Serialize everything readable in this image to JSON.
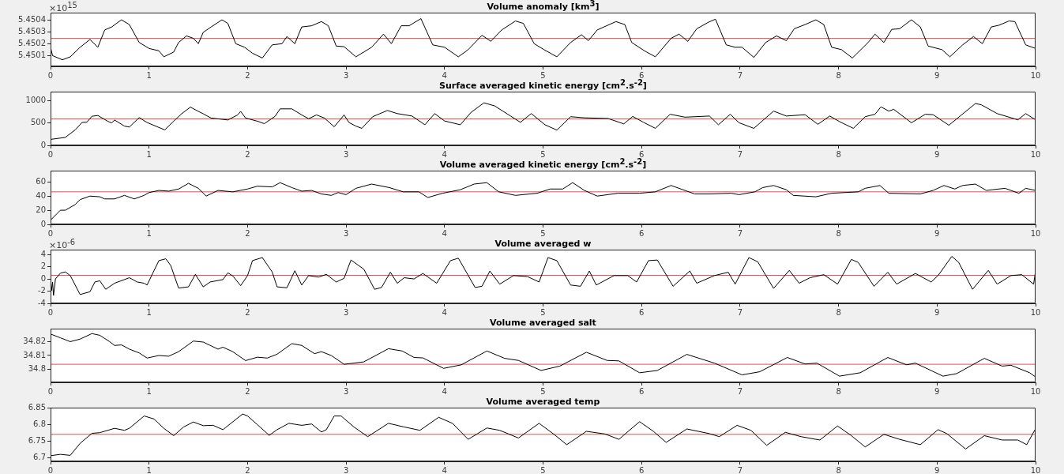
{
  "chart_data": [
    {
      "type": "line",
      "title": "Volume anomaly [km$^{3}$]",
      "annotations": [
        "×10$^{15}$"
      ],
      "xlim": [
        0,
        10
      ],
      "xticks": [
        0,
        1,
        2,
        3,
        4,
        5,
        6,
        7,
        8,
        9,
        10
      ],
      "ylim": [
        5.45001,
        5.45046
      ],
      "yticks": [
        5.4501,
        5.4502,
        5.4503,
        5.4504
      ],
      "x": [
        0,
        0.02,
        0.12,
        0.2,
        0.3,
        0.4,
        0.48,
        0.55,
        0.62,
        0.72,
        0.8,
        0.9,
        1.0,
        1.1,
        1.15,
        1.25,
        1.3,
        1.38,
        1.45,
        1.5,
        1.55,
        1.63,
        1.74,
        1.8,
        1.88,
        1.97,
        2.05,
        2.15,
        2.25,
        2.35,
        2.4,
        2.48,
        2.55,
        2.65,
        2.75,
        2.82,
        2.9,
        2.98,
        3.1,
        3.26,
        3.38,
        3.46,
        3.56,
        3.64,
        3.76,
        3.88,
        4.0,
        4.14,
        4.24,
        4.38,
        4.47,
        4.58,
        4.72,
        4.8,
        4.91,
        5.01,
        5.14,
        5.28,
        5.39,
        5.46,
        5.55,
        5.74,
        5.83,
        5.9,
        6.03,
        6.14,
        6.3,
        6.38,
        6.47,
        6.56,
        6.68,
        6.75,
        6.86,
        6.95,
        7.02,
        7.14,
        7.26,
        7.37,
        7.47,
        7.55,
        7.66,
        7.77,
        7.85,
        7.93,
        8.03,
        8.14,
        8.3,
        8.37,
        8.46,
        8.54,
        8.62,
        8.74,
        8.83,
        8.91,
        9.05,
        9.13,
        9.26,
        9.37,
        9.46,
        9.55,
        9.63,
        9.73,
        9.79,
        9.9,
        10
      ],
      "series": [
        {
          "color": "#000000",
          "values": [
            5.45017,
            5.4501,
            5.450065,
            5.45009,
            5.45017,
            5.450235,
            5.45017,
            5.450315,
            5.45034,
            5.4504,
            5.45036,
            5.45021,
            5.45016,
            5.45014,
            5.45009,
            5.45013,
            5.45021,
            5.450265,
            5.450245,
            5.4502,
            5.450295,
            5.45034,
            5.4504,
            5.45037,
            5.4502,
            5.45017,
            5.45012,
            5.45008,
            5.45019,
            5.4502,
            5.45026,
            5.4502,
            5.45034,
            5.45035,
            5.450385,
            5.45035,
            5.45018,
            5.450175,
            5.45009,
            5.45017,
            5.45028,
            5.4502,
            5.45035,
            5.45035,
            5.45041,
            5.45019,
            5.45017,
            5.45009,
            5.45015,
            5.45027,
            5.45022,
            5.450315,
            5.45039,
            5.45037,
            5.4502,
            5.45015,
            5.45009,
            5.45021,
            5.450275,
            5.450225,
            5.450315,
            5.450385,
            5.45036,
            5.45021,
            5.45014,
            5.45009,
            5.450245,
            5.45028,
            5.45022,
            5.450325,
            5.45038,
            5.450405,
            5.45019,
            5.45017,
            5.45017,
            5.450085,
            5.45021,
            5.450265,
            5.450225,
            5.450325,
            5.45036,
            5.4504,
            5.45036,
            5.45017,
            5.45015,
            5.45008,
            5.45021,
            5.45028,
            5.45021,
            5.45032,
            5.450325,
            5.4504,
            5.45034,
            5.45018,
            5.45015,
            5.45009,
            5.45019,
            5.45026,
            5.4502,
            5.45034,
            5.450355,
            5.45039,
            5.450385,
            5.45019,
            5.45016
          ]
        }
      ],
      "ref_lines": [
        {
          "axis": "y",
          "value": 5.450244,
          "color": "#d9534f"
        }
      ]
    },
    {
      "type": "line",
      "title": "Surface averaged kinetic energy [cm$^{2}$.s$^{-2}$]",
      "xlim": [
        0,
        10
      ],
      "xticks": [
        0,
        1,
        2,
        3,
        4,
        5,
        6,
        7,
        8,
        9,
        10
      ],
      "ylim": [
        0,
        1200
      ],
      "yticks": [
        0,
        500,
        1000
      ],
      "x": [
        0,
        0.15,
        0.25,
        0.32,
        0.37,
        0.42,
        0.48,
        0.58,
        0.62,
        0.65,
        0.75,
        0.8,
        0.9,
        0.98,
        1.1,
        1.16,
        1.25,
        1.33,
        1.42,
        1.5,
        1.55,
        1.63,
        1.8,
        1.9,
        1.93,
        1.98,
        2.1,
        2.17,
        2.28,
        2.33,
        2.45,
        2.55,
        2.62,
        2.7,
        2.78,
        2.88,
        2.98,
        3.03,
        3.1,
        3.16,
        3.27,
        3.42,
        3.52,
        3.67,
        3.8,
        3.9,
        4.0,
        4.16,
        4.27,
        4.4,
        4.51,
        4.67,
        4.77,
        4.88,
        5.02,
        5.14,
        5.28,
        5.42,
        5.66,
        5.82,
        5.91,
        6.02,
        6.14,
        6.29,
        6.44,
        6.69,
        6.78,
        6.9,
        6.99,
        7.14,
        7.34,
        7.47,
        7.66,
        7.79,
        7.91,
        8.01,
        8.15,
        8.27,
        8.37,
        8.43,
        8.51,
        8.56,
        8.74,
        8.88,
        8.96,
        9.12,
        9.39,
        9.45,
        9.61,
        9.82,
        9.9,
        10
      ],
      "series": [
        {
          "color": "#000000",
          "values": [
            133,
            178,
            345,
            510,
            520,
            650,
            667,
            540,
            500,
            567,
            430,
            410,
            620,
            510,
            400,
            345,
            540,
            705,
            855,
            760,
            705,
            610,
            567,
            680,
            760,
            610,
            540,
            485,
            650,
            815,
            815,
            680,
            595,
            680,
            610,
            415,
            680,
            510,
            430,
            380,
            640,
            780,
            710,
            655,
            460,
            710,
            545,
            460,
            740,
            950,
            880,
            655,
            515,
            710,
            460,
            340,
            640,
            615,
            600,
            480,
            645,
            515,
            380,
            695,
            630,
            655,
            460,
            695,
            505,
            380,
            765,
            655,
            685,
            470,
            655,
            530,
            380,
            640,
            695,
            860,
            765,
            805,
            505,
            695,
            685,
            450,
            935,
            905,
            710,
            570,
            710,
            570
          ]
        }
      ],
      "ref_lines": [
        {
          "axis": "y",
          "value": 590,
          "color": "#d9534f"
        }
      ]
    },
    {
      "type": "line",
      "title": "Volume averaged kinetic energy [cm$^{2}$.s$^{-2}$]",
      "xlim": [
        0,
        10
      ],
      "xticks": [
        0,
        1,
        2,
        3,
        4,
        5,
        6,
        7,
        8,
        9,
        10
      ],
      "ylim": [
        0,
        76
      ],
      "yticks": [
        0,
        20,
        40,
        60
      ],
      "x": [
        0,
        0.1,
        0.15,
        0.25,
        0.3,
        0.4,
        0.5,
        0.55,
        0.65,
        0.75,
        0.85,
        0.95,
        1.0,
        1.1,
        1.2,
        1.3,
        1.4,
        1.5,
        1.58,
        1.7,
        1.85,
        2.0,
        2.1,
        2.25,
        2.33,
        2.45,
        2.55,
        2.65,
        2.75,
        2.85,
        2.92,
        3.0,
        3.1,
        3.26,
        3.44,
        3.58,
        3.74,
        3.83,
        3.98,
        4.16,
        4.3,
        4.43,
        4.55,
        4.72,
        4.94,
        5.07,
        5.2,
        5.3,
        5.42,
        5.55,
        5.76,
        5.98,
        6.14,
        6.3,
        6.54,
        6.68,
        6.91,
        6.99,
        7.15,
        7.23,
        7.34,
        7.47,
        7.54,
        7.77,
        7.93,
        8.2,
        8.27,
        8.42,
        8.51,
        8.83,
        8.96,
        9.07,
        9.18,
        9.26,
        9.39,
        9.5,
        9.69,
        9.83,
        9.9,
        10
      ],
      "series": [
        {
          "color": "#000000",
          "values": [
            6,
            20,
            20,
            28,
            35,
            40,
            39,
            36,
            36,
            41,
            36,
            41,
            45,
            48,
            47,
            50,
            58,
            51,
            40,
            48,
            46,
            50,
            54,
            53,
            59,
            52,
            47,
            48,
            43,
            41,
            45,
            42,
            51,
            57,
            52,
            46,
            46,
            38,
            44,
            49,
            57,
            59,
            46,
            41,
            44,
            50,
            50,
            59,
            48,
            40,
            44,
            44,
            46,
            55,
            43,
            43,
            44,
            42,
            46,
            52,
            55,
            49,
            41,
            39,
            44,
            46,
            51,
            55,
            44,
            43,
            48,
            55,
            50,
            55,
            57,
            48,
            51,
            44,
            51,
            48
          ]
        }
      ],
      "ref_lines": [
        {
          "axis": "y",
          "value": 46,
          "color": "#d9534f"
        }
      ]
    },
    {
      "type": "line",
      "title": "Volume averaged w",
      "annotations": [
        "×10$^{-6}$"
      ],
      "xlim": [
        0,
        10
      ],
      "xticks": [
        0,
        1,
        2,
        3,
        4,
        5,
        6,
        7,
        8,
        9,
        10
      ],
      "ylim": [
        -4,
        4.8
      ],
      "yticks": [
        -4,
        -2,
        0,
        2,
        4
      ],
      "x": [
        0,
        0.01,
        0.02,
        0.03,
        0.05,
        0.1,
        0.15,
        0.2,
        0.3,
        0.4,
        0.45,
        0.5,
        0.56,
        0.65,
        0.75,
        0.8,
        0.88,
        0.95,
        0.98,
        1.05,
        1.1,
        1.17,
        1.22,
        1.3,
        1.4,
        1.47,
        1.55,
        1.62,
        1.75,
        1.8,
        1.85,
        1.93,
        2.0,
        2.05,
        2.15,
        2.25,
        2.3,
        2.4,
        2.48,
        2.55,
        2.62,
        2.72,
        2.8,
        2.9,
        2.98,
        3.05,
        3.18,
        3.29,
        3.36,
        3.45,
        3.52,
        3.59,
        3.69,
        3.78,
        3.92,
        4.06,
        4.14,
        4.31,
        4.38,
        4.46,
        4.56,
        4.7,
        4.84,
        4.96,
        5.05,
        5.14,
        5.28,
        5.38,
        5.47,
        5.54,
        5.72,
        5.86,
        5.95,
        6.07,
        6.16,
        6.32,
        6.49,
        6.56,
        6.74,
        6.88,
        6.95,
        7.09,
        7.18,
        7.34,
        7.5,
        7.6,
        7.71,
        7.85,
        7.99,
        8.13,
        8.2,
        8.36,
        8.5,
        8.59,
        8.78,
        8.94,
        9.01,
        9.15,
        9.22,
        9.36,
        9.52,
        9.61,
        9.75,
        9.86,
        9.98,
        10
      ],
      "series": [
        {
          "color": "#000000",
          "values": [
            0,
            -1.9,
            -0.5,
            -2.7,
            0,
            0.95,
            1.15,
            0.55,
            -2.55,
            -2.1,
            -0.5,
            -0.3,
            -1.7,
            -0.7,
            -0.1,
            0.2,
            -0.5,
            -0.7,
            -1.0,
            1.35,
            3.0,
            3.3,
            2.2,
            -1.5,
            -1.3,
            0.75,
            -1.3,
            -0.5,
            -0.1,
            1.0,
            0.5,
            -1.1,
            0.55,
            3.0,
            3.5,
            1.15,
            -1.3,
            -1.45,
            1.35,
            -1.0,
            0.55,
            0.3,
            0.75,
            -0.5,
            0.1,
            3.1,
            1.6,
            -1.7,
            -1.4,
            1.1,
            -0.7,
            0.2,
            0,
            0.9,
            -0.7,
            3.0,
            3.4,
            -1.4,
            -1.2,
            1.3,
            -0.85,
            0.55,
            0.4,
            -0.5,
            3.5,
            3.0,
            -1.0,
            -1.2,
            1.3,
            -1.0,
            0.55,
            0.55,
            -0.5,
            3.0,
            3.1,
            -1.2,
            1.3,
            -0.7,
            0.55,
            1.1,
            -0.85,
            3.5,
            2.8,
            -1.55,
            1.4,
            -0.7,
            0.2,
            0.7,
            -0.85,
            3.2,
            2.7,
            -1.2,
            1.1,
            -0.85,
            0.9,
            -0.5,
            0.55,
            3.7,
            2.7,
            -1.7,
            1.4,
            -0.85,
            0.55,
            0.7,
            -0.85,
            1.3
          ]
        }
      ],
      "ref_lines": [
        {
          "axis": "y",
          "value": 0.6,
          "color": "#d9534f"
        }
      ]
    },
    {
      "type": "line",
      "title": "Volume averaged salt",
      "xlim": [
        0,
        10
      ],
      "xticks": [
        0,
        1,
        2,
        3,
        4,
        5,
        6,
        7,
        8,
        9,
        10
      ],
      "ylim": [
        34.791,
        34.829
      ],
      "yticks": [
        34.8,
        34.81,
        34.82
      ],
      "x": [
        0,
        0.1,
        0.2,
        0.3,
        0.42,
        0.5,
        0.6,
        0.65,
        0.72,
        0.8,
        0.9,
        0.98,
        1.1,
        1.2,
        1.3,
        1.45,
        1.55,
        1.7,
        1.75,
        1.85,
        1.98,
        2.1,
        2.2,
        2.3,
        2.45,
        2.55,
        2.68,
        2.75,
        2.85,
        2.98,
        3.08,
        3.18,
        3.43,
        3.57,
        3.69,
        3.78,
        3.99,
        4.17,
        4.43,
        4.61,
        4.75,
        4.98,
        5.17,
        5.44,
        5.65,
        5.77,
        5.98,
        6.16,
        6.46,
        6.74,
        7.02,
        7.2,
        7.48,
        7.66,
        7.78,
        8.01,
        8.22,
        8.5,
        8.69,
        8.78,
        9.06,
        9.2,
        9.48,
        9.66,
        9.75,
        9.94,
        10
      ],
      "series": [
        {
          "color": "#000000",
          "values": [
            34.8252,
            34.8225,
            34.8198,
            34.8216,
            34.8255,
            34.8243,
            34.8198,
            34.8171,
            34.8175,
            34.8145,
            34.8118,
            34.8082,
            34.81,
            34.8095,
            34.8127,
            34.8202,
            34.8195,
            34.8145,
            34.8159,
            34.8127,
            34.8064,
            34.8088,
            34.8082,
            34.8109,
            34.8184,
            34.8171,
            34.8113,
            34.8127,
            34.81,
            34.8038,
            34.8046,
            34.8055,
            34.8148,
            34.8132,
            34.8086,
            34.8083,
            34.8009,
            34.8034,
            34.8132,
            34.808,
            34.8065,
            34.7994,
            34.8025,
            34.8123,
            34.8065,
            34.8062,
            34.7978,
            34.7994,
            34.8108,
            34.8046,
            34.7963,
            34.7985,
            34.8086,
            34.804,
            34.8046,
            34.7954,
            34.7978,
            34.8086,
            34.8034,
            34.8046,
            34.7954,
            34.7972,
            34.808,
            34.8025,
            34.8031,
            34.7978,
            34.7948
          ]
        }
      ],
      "ref_lines": [
        {
          "axis": "y",
          "value": 34.8038,
          "color": "#d9534f"
        }
      ]
    },
    {
      "type": "line",
      "title": "Volume averaged temp",
      "xlim": [
        0,
        10
      ],
      "xticks": [
        0,
        1,
        2,
        3,
        4,
        5,
        6,
        7,
        8,
        9,
        10
      ],
      "ylim": [
        6.689,
        6.85
      ],
      "yticks": [
        6.7,
        6.75,
        6.8,
        6.85
      ],
      "x": [
        0,
        0.1,
        0.2,
        0.3,
        0.42,
        0.5,
        0.65,
        0.75,
        0.8,
        0.95,
        1.05,
        1.15,
        1.25,
        1.35,
        1.45,
        1.55,
        1.65,
        1.75,
        1.95,
        2.0,
        2.1,
        2.22,
        2.3,
        2.42,
        2.55,
        2.65,
        2.75,
        2.8,
        2.88,
        2.95,
        3.08,
        3.22,
        3.43,
        3.59,
        3.75,
        3.94,
        4.08,
        4.24,
        4.43,
        4.56,
        4.75,
        4.96,
        5.12,
        5.24,
        5.44,
        5.63,
        5.77,
        5.98,
        6.12,
        6.25,
        6.46,
        6.69,
        6.79,
        6.97,
        7.11,
        7.27,
        7.46,
        7.62,
        7.81,
        7.99,
        8.13,
        8.27,
        8.46,
        8.62,
        8.83,
        9.01,
        9.1,
        9.29,
        9.48,
        9.66,
        9.82,
        9.91,
        10
      ],
      "series": [
        {
          "color": "#000000",
          "values": [
            6.706,
            6.71,
            6.707,
            6.743,
            6.773,
            6.775,
            6.788,
            6.782,
            6.788,
            6.825,
            6.816,
            6.788,
            6.766,
            6.792,
            6.807,
            6.796,
            6.797,
            6.784,
            6.831,
            6.825,
            6.799,
            6.767,
            6.784,
            6.803,
            6.797,
            6.801,
            6.777,
            6.784,
            6.825,
            6.825,
            6.792,
            6.763,
            6.803,
            6.792,
            6.782,
            6.821,
            6.803,
            6.755,
            6.789,
            6.782,
            6.759,
            6.803,
            6.768,
            6.739,
            6.779,
            6.771,
            6.755,
            6.808,
            6.779,
            6.746,
            6.786,
            6.772,
            6.763,
            6.797,
            6.782,
            6.737,
            6.776,
            6.763,
            6.753,
            6.795,
            6.766,
            6.732,
            6.77,
            6.755,
            6.739,
            6.784,
            6.772,
            6.726,
            6.766,
            6.753,
            6.753,
            6.739,
            6.787
          ]
        }
      ],
      "ref_lines": [
        {
          "axis": "y",
          "value": 6.77,
          "color": "#d9534f"
        }
      ]
    }
  ]
}
